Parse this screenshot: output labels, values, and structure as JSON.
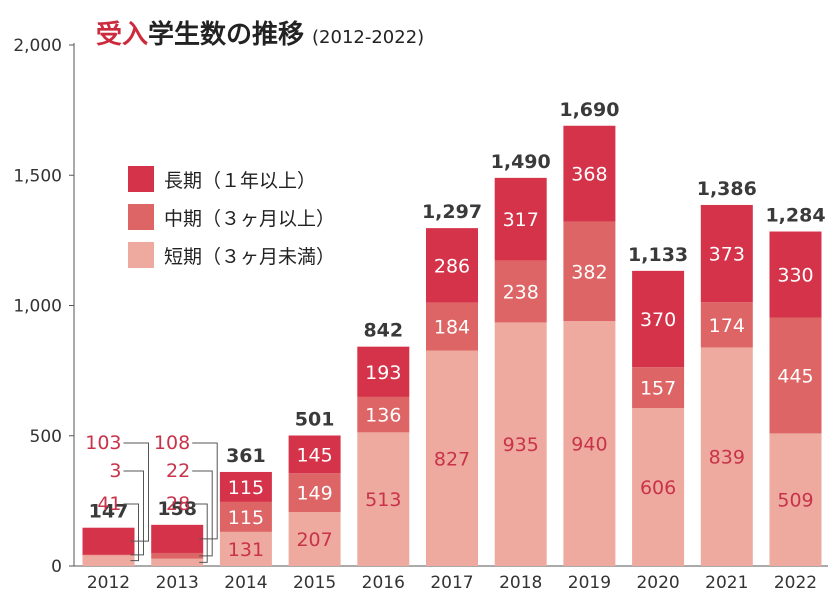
{
  "title": {
    "accent": "受入",
    "main": "学生数の推移",
    "sub": "(2012-2022)"
  },
  "colors": {
    "long": "#d5334a",
    "mid": "#dd6565",
    "short": "#eeaa9e",
    "axis": "#555555",
    "text_dark": "#3a3a3a",
    "text_label_red": "#c8334a",
    "text_white": "#ffffff"
  },
  "legend": [
    {
      "label": "長期（１年以上）",
      "color": "#d5334a"
    },
    {
      "label": "中期（３ヶ月以上）",
      "color": "#dd6565"
    },
    {
      "label": "短期（３ヶ月未満）",
      "color": "#eeaa9e"
    }
  ],
  "chart_data": {
    "type": "bar",
    "stacked": true,
    "categories": [
      "2012",
      "2013",
      "2014",
      "2015",
      "2016",
      "2017",
      "2018",
      "2019",
      "2020",
      "2021",
      "2022"
    ],
    "series": [
      {
        "name": "短期（３ヶ月未満）",
        "values": [
          41,
          28,
          131,
          207,
          513,
          827,
          935,
          940,
          606,
          839,
          509
        ]
      },
      {
        "name": "中期（３ヶ月以上）",
        "values": [
          3,
          22,
          115,
          149,
          136,
          184,
          238,
          382,
          157,
          174,
          445
        ]
      },
      {
        "name": "長期（１年以上）",
        "values": [
          103,
          108,
          115,
          145,
          193,
          286,
          317,
          368,
          370,
          373,
          330
        ]
      }
    ],
    "totals": [
      "147",
      "158",
      "361",
      "501",
      "842",
      "1,297",
      "1,490",
      "1,690",
      "1,133",
      "1,386",
      "1,284"
    ],
    "yticks": [
      "0",
      "500",
      "1,000",
      "1,500",
      "2,000"
    ],
    "ylim": [
      0,
      2000
    ],
    "grid": false,
    "legend_position": "top-left"
  }
}
